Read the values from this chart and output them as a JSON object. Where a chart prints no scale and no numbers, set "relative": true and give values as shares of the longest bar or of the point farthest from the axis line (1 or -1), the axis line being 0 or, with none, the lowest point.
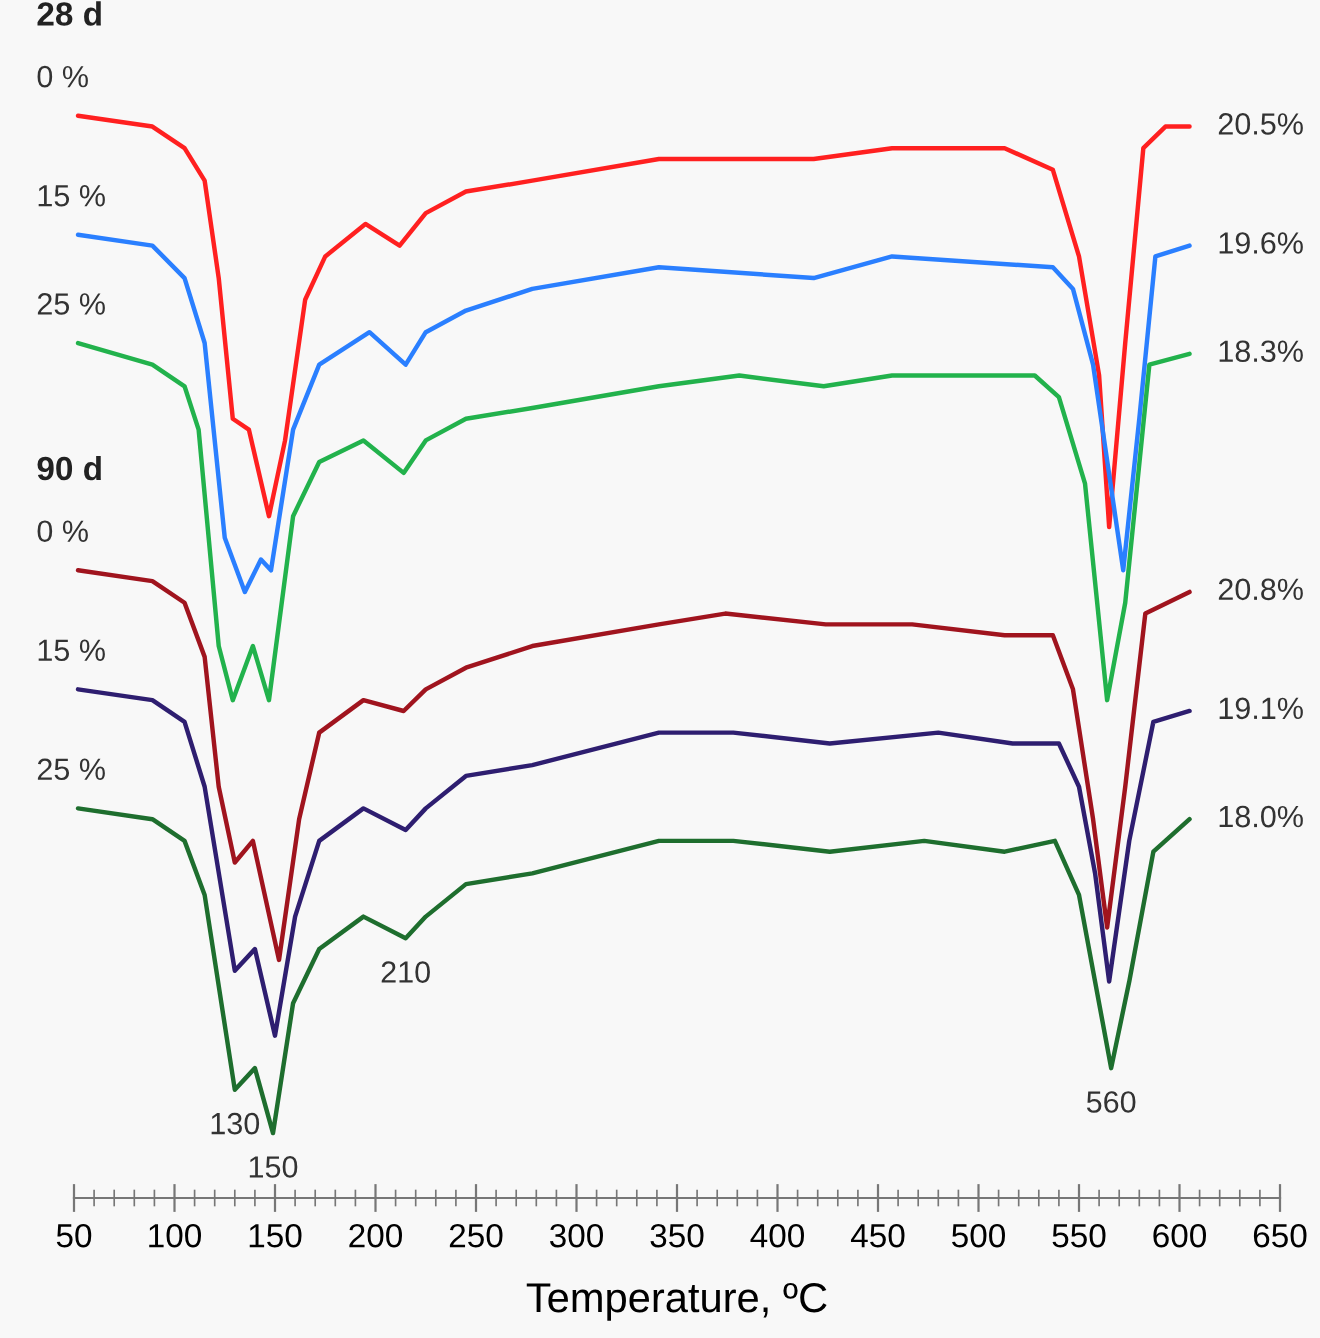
{
  "chart_data": {
    "type": "line",
    "relative": true,
    "xlabel": "Temperature, ºC",
    "line_style": "solid",
    "xlim": [
      50,
      650
    ],
    "xticks": [
      50,
      {
        "value": 60,
        "label": null
      },
      {
        "value": 70,
        "label": null
      },
      {
        "value": 80,
        "label": null
      },
      {
        "value": 90,
        "label": null
      },
      100,
      {
        "value": 110,
        "label": null
      },
      {
        "value": 120,
        "label": null
      },
      {
        "value": 130,
        "label": null
      },
      {
        "value": 140,
        "label": null
      },
      150,
      {
        "value": 160,
        "label": null
      },
      {
        "value": 170,
        "label": null
      },
      {
        "value": 180,
        "label": null
      },
      {
        "value": 190,
        "label": null
      },
      200,
      {
        "value": 210,
        "label": null
      },
      {
        "value": 220,
        "label": null
      },
      {
        "value": 230,
        "label": null
      },
      {
        "value": 240,
        "label": null
      },
      250,
      {
        "value": 260,
        "label": null
      },
      {
        "value": 270,
        "label": null
      },
      {
        "value": 280,
        "label": null
      },
      {
        "value": 290,
        "label": null
      },
      300,
      {
        "value": 310,
        "label": null
      },
      {
        "value": 320,
        "label": null
      },
      {
        "value": 330,
        "label": null
      },
      {
        "value": 340,
        "label": null
      },
      350,
      {
        "value": 360,
        "label": null
      },
      {
        "value": 370,
        "label": null
      },
      {
        "value": 380,
        "label": null
      },
      {
        "value": 390,
        "label": null
      },
      400,
      {
        "value": 410,
        "label": null
      },
      {
        "value": 420,
        "label": null
      },
      {
        "value": 430,
        "label": null
      },
      {
        "value": 440,
        "label": null
      },
      450,
      {
        "value": 460,
        "label": null
      },
      {
        "value": 470,
        "label": null
      },
      {
        "value": 480,
        "label": null
      },
      {
        "value": 490,
        "label": null
      },
      500,
      {
        "value": 510,
        "label": null
      },
      {
        "value": 520,
        "label": null
      },
      {
        "value": 530,
        "label": null
      },
      {
        "value": 540,
        "label": null
      },
      550,
      {
        "value": 560,
        "label": null
      },
      {
        "value": 570,
        "label": null
      },
      {
        "value": 580,
        "label": null
      },
      {
        "value": 590,
        "label": null
      },
      600,
      {
        "value": 610,
        "label": null
      },
      {
        "value": 620,
        "label": null
      },
      {
        "value": 630,
        "label": null
      },
      {
        "value": 640,
        "label": null
      },
      650
    ],
    "series": [
      {
        "name": "0 %",
        "color": "#ff2020",
        "x": [
          52,
          89,
          105,
          115,
          122,
          129,
          137,
          147,
          155,
          165,
          175,
          195,
          212,
          225,
          245,
          278,
          341,
          374,
          418,
          457,
          513,
          537,
          550,
          560,
          565,
          573,
          582,
          593,
          605
        ],
        "values": [
          1.0,
          0.99,
          0.97,
          0.94,
          0.85,
          0.72,
          0.71,
          0.63,
          0.7,
          0.83,
          0.87,
          0.9,
          0.88,
          0.91,
          0.93,
          0.94,
          0.96,
          0.96,
          0.96,
          0.97,
          0.97,
          0.95,
          0.87,
          0.76,
          0.62,
          0.79,
          0.97,
          0.99,
          0.99
        ]
      },
      {
        "name": "15 %",
        "color": "#2a7fff",
        "x": [
          52,
          89,
          105,
          115,
          125,
          135,
          143,
          148,
          159,
          172,
          197,
          215,
          225,
          245,
          278,
          341,
          418,
          457,
          537,
          547,
          557,
          572,
          580,
          588,
          605
        ],
        "values": [
          0.89,
          0.88,
          0.85,
          0.79,
          0.61,
          0.56,
          0.59,
          0.58,
          0.71,
          0.77,
          0.8,
          0.77,
          0.8,
          0.82,
          0.84,
          0.86,
          0.85,
          0.87,
          0.86,
          0.84,
          0.77,
          0.58,
          0.72,
          0.87,
          0.88
        ]
      },
      {
        "name": "25 %",
        "color": "#22b24c",
        "x": [
          52,
          89,
          105,
          112,
          122,
          129,
          139,
          147,
          159,
          172,
          194,
          214,
          225,
          245,
          278,
          341,
          381,
          423,
          457,
          528,
          540,
          553,
          564,
          573,
          585,
          605
        ],
        "values": [
          0.79,
          0.77,
          0.75,
          0.71,
          0.51,
          0.46,
          0.51,
          0.46,
          0.63,
          0.68,
          0.7,
          0.67,
          0.7,
          0.72,
          0.73,
          0.75,
          0.76,
          0.75,
          0.76,
          0.76,
          0.74,
          0.66,
          0.46,
          0.55,
          0.77,
          0.78
        ]
      },
      {
        "name": "0 %",
        "color": "#a0141e",
        "x": [
          52,
          89,
          105,
          115,
          122,
          130,
          139,
          152,
          162,
          172,
          194,
          214,
          225,
          245,
          278,
          341,
          374,
          424,
          467,
          513,
          537,
          547,
          557,
          564,
          573,
          583,
          605
        ],
        "values": [
          0.58,
          0.57,
          0.55,
          0.5,
          0.38,
          0.31,
          0.33,
          0.22,
          0.35,
          0.43,
          0.46,
          0.45,
          0.47,
          0.49,
          0.51,
          0.53,
          0.54,
          0.53,
          0.53,
          0.52,
          0.52,
          0.47,
          0.35,
          0.25,
          0.38,
          0.54,
          0.56
        ]
      },
      {
        "name": "15 %",
        "color": "#2e1e70",
        "x": [
          52,
          89,
          105,
          115,
          130,
          140,
          150,
          160,
          172,
          194,
          215,
          225,
          245,
          278,
          341,
          378,
          426,
          480,
          517,
          540,
          550,
          558,
          565,
          575,
          587,
          605
        ],
        "values": [
          0.47,
          0.46,
          0.44,
          0.38,
          0.21,
          0.23,
          0.15,
          0.26,
          0.33,
          0.36,
          0.34,
          0.36,
          0.39,
          0.4,
          0.43,
          0.43,
          0.42,
          0.43,
          0.42,
          0.42,
          0.38,
          0.3,
          0.2,
          0.33,
          0.44,
          0.45
        ]
      },
      {
        "name": "25 %",
        "color": "#1e6e2e",
        "x": [
          52,
          89,
          105,
          115,
          130,
          140,
          149,
          159,
          172,
          194,
          215,
          225,
          245,
          278,
          341,
          378,
          426,
          473,
          513,
          538,
          550,
          558,
          566,
          575,
          587,
          605
        ],
        "values": [
          0.36,
          0.35,
          0.33,
          0.28,
          0.1,
          0.12,
          0.06,
          0.18,
          0.23,
          0.26,
          0.24,
          0.26,
          0.29,
          0.3,
          0.33,
          0.33,
          0.32,
          0.33,
          0.32,
          0.33,
          0.28,
          0.2,
          0.12,
          0.2,
          0.32,
          0.35
        ]
      }
    ],
    "annotations": [
      "28 d",
      "90 d",
      {
        "text": "20.5%",
        "x": 605,
        "y": 0.99
      },
      {
        "text": "19.6%",
        "x": 605,
        "y": 0.88
      },
      {
        "text": "18.3%",
        "x": 605,
        "y": 0.78
      },
      {
        "text": "20.8%",
        "x": 605,
        "y": 0.56
      },
      {
        "text": "19.1%",
        "x": 605,
        "y": 0.45
      },
      {
        "text": "18.0%",
        "x": 605,
        "y": 0.35
      },
      {
        "text": "130",
        "x": 130,
        "y": 0.1
      },
      {
        "text": "150",
        "x": 149,
        "y": 0.06
      },
      {
        "text": "210",
        "x": 215,
        "y": 0.24
      },
      {
        "text": "560",
        "x": 566,
        "y": 0.12
      }
    ]
  }
}
